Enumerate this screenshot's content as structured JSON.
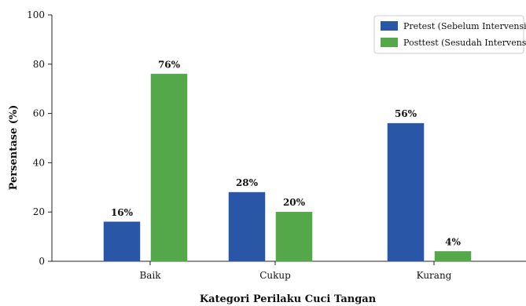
{
  "chart_data": {
    "type": "bar",
    "categories": [
      "Baik",
      "Cukup",
      "Kurang"
    ],
    "series": [
      {
        "name": "Pretest (Sebelum Intervensi)",
        "values": [
          16,
          28,
          56
        ],
        "labels": [
          "16%",
          "28%",
          "56%"
        ],
        "color": "#2a56a8"
      },
      {
        "name": "Posttest (Sesudah Intervensi)",
        "values": [
          76,
          20,
          4
        ],
        "labels": [
          "76%",
          "20%",
          "4%"
        ],
        "color": "#54a84a"
      }
    ],
    "title": "",
    "xlabel": "Kategori Perilaku Cuci Tangan",
    "ylabel": "Persentase (%)",
    "ylim": [
      0,
      100
    ],
    "yticks": [
      0,
      20,
      40,
      60,
      80,
      100
    ],
    "grid": false,
    "legend_position": "top-right"
  }
}
